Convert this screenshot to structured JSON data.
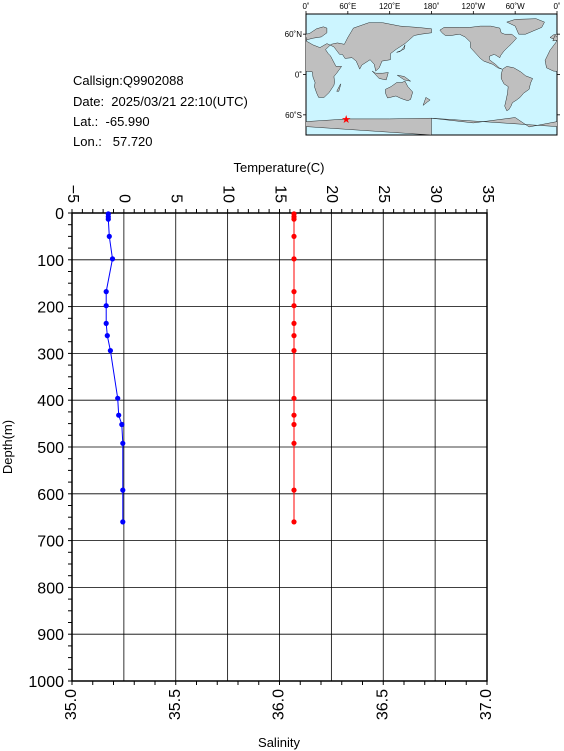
{
  "info": {
    "callsign": "Callsign:Q9902088",
    "date": "Date:  2025/03/21 22:10(UTC)",
    "lat": "Lat.:  -65.990",
    "lon": "Lon.:   57.720"
  },
  "map": {
    "top_labels": [
      "0˚",
      "60˚E",
      "120˚E",
      "180˚",
      "120˚W",
      "60˚W",
      "0˚"
    ],
    "side_labels": [
      "60˚N",
      "0˚",
      "60˚S"
    ],
    "marker": {
      "lat": -65.99,
      "lon": 57.72,
      "symbol": "★",
      "color": "#ff0000"
    },
    "ocean_color": "#ccf5ff",
    "land_color": "#bfbfbf"
  },
  "chart_data": {
    "type": "line",
    "ylabel": "Depth(m)",
    "temperature_axis": {
      "label": "Temperature(C)",
      "range": [
        -5,
        35
      ],
      "ticks": [
        "−5",
        "0",
        "5",
        "10",
        "15",
        "20",
        "25",
        "30",
        "35"
      ]
    },
    "salinity_axis": {
      "label": "Salinity",
      "range": [
        35.0,
        37.0
      ],
      "ticks": [
        "35.0",
        "35.5",
        "36.0",
        "36.5",
        "37.0"
      ]
    },
    "depth_axis": {
      "range": [
        0,
        1000
      ],
      "inverted": true,
      "ticks": [
        "0",
        "100",
        "200",
        "300",
        "400",
        "500",
        "600",
        "700",
        "800",
        "900",
        "1000"
      ]
    },
    "grid": true,
    "series": [
      {
        "axis": "temperature",
        "color": "#0000ff",
        "points": [
          {
            "depth": 2,
            "value": -1.5
          },
          {
            "depth": 8,
            "value": -1.5
          },
          {
            "depth": 13,
            "value": -1.5
          },
          {
            "depth": 50,
            "value": -1.4
          },
          {
            "depth": 98,
            "value": -1.1
          },
          {
            "depth": 168,
            "value": -1.7
          },
          {
            "depth": 198,
            "value": -1.7
          },
          {
            "depth": 236,
            "value": -1.7
          },
          {
            "depth": 262,
            "value": -1.6
          },
          {
            "depth": 294,
            "value": -1.3
          },
          {
            "depth": 396,
            "value": -0.6
          },
          {
            "depth": 432,
            "value": -0.5
          },
          {
            "depth": 452,
            "value": -0.2
          },
          {
            "depth": 492,
            "value": -0.1
          },
          {
            "depth": 592,
            "value": -0.1
          },
          {
            "depth": 660,
            "value": -0.1
          }
        ]
      },
      {
        "axis": "salinity",
        "color": "#ff0000",
        "points": [
          {
            "depth": 2,
            "value": 36.07
          },
          {
            "depth": 8,
            "value": 36.07
          },
          {
            "depth": 13,
            "value": 36.07
          },
          {
            "depth": 50,
            "value": 36.07
          },
          {
            "depth": 98,
            "value": 36.07
          },
          {
            "depth": 168,
            "value": 36.07
          },
          {
            "depth": 198,
            "value": 36.07
          },
          {
            "depth": 236,
            "value": 36.07
          },
          {
            "depth": 262,
            "value": 36.07
          },
          {
            "depth": 294,
            "value": 36.07
          },
          {
            "depth": 396,
            "value": 36.07
          },
          {
            "depth": 432,
            "value": 36.07
          },
          {
            "depth": 452,
            "value": 36.07
          },
          {
            "depth": 492,
            "value": 36.07
          },
          {
            "depth": 592,
            "value": 36.07
          },
          {
            "depth": 660,
            "value": 36.07
          }
        ]
      }
    ]
  }
}
